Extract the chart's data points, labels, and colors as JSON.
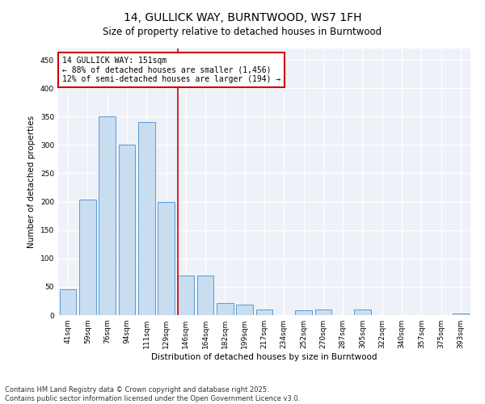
{
  "title": "14, GULLICK WAY, BURNTWOOD, WS7 1FH",
  "subtitle": "Size of property relative to detached houses in Burntwood",
  "xlabel": "Distribution of detached houses by size in Burntwood",
  "ylabel": "Number of detached properties",
  "categories": [
    "41sqm",
    "59sqm",
    "76sqm",
    "94sqm",
    "111sqm",
    "129sqm",
    "146sqm",
    "164sqm",
    "182sqm",
    "199sqm",
    "217sqm",
    "234sqm",
    "252sqm",
    "270sqm",
    "287sqm",
    "305sqm",
    "322sqm",
    "340sqm",
    "357sqm",
    "375sqm",
    "393sqm"
  ],
  "values": [
    45,
    204,
    350,
    300,
    340,
    200,
    70,
    70,
    22,
    18,
    10,
    0,
    8,
    10,
    0,
    10,
    0,
    0,
    0,
    0,
    3
  ],
  "bar_color": "#c8ddf0",
  "bar_edge_color": "#5b9bd5",
  "line_color": "#cc0000",
  "line_x_index": 6,
  "annotation_line1": "14 GULLICK WAY: 151sqm",
  "annotation_line2": "← 88% of detached houses are smaller (1,456)",
  "annotation_line3": "12% of semi-detached houses are larger (194) →",
  "annotation_box_color": "#ffffff",
  "annotation_border_color": "#cc0000",
  "ylim": [
    0,
    470
  ],
  "yticks": [
    0,
    50,
    100,
    150,
    200,
    250,
    300,
    350,
    400,
    450
  ],
  "footer_line1": "Contains HM Land Registry data © Crown copyright and database right 2025.",
  "footer_line2": "Contains public sector information licensed under the Open Government Licence v3.0.",
  "bg_color": "#ffffff",
  "plot_bg_color": "#eef2f8",
  "grid_color": "#ffffff",
  "title_fontsize": 10,
  "subtitle_fontsize": 8.5,
  "axis_label_fontsize": 7.5,
  "tick_fontsize": 6.5,
  "annotation_fontsize": 7,
  "footer_fontsize": 6
}
